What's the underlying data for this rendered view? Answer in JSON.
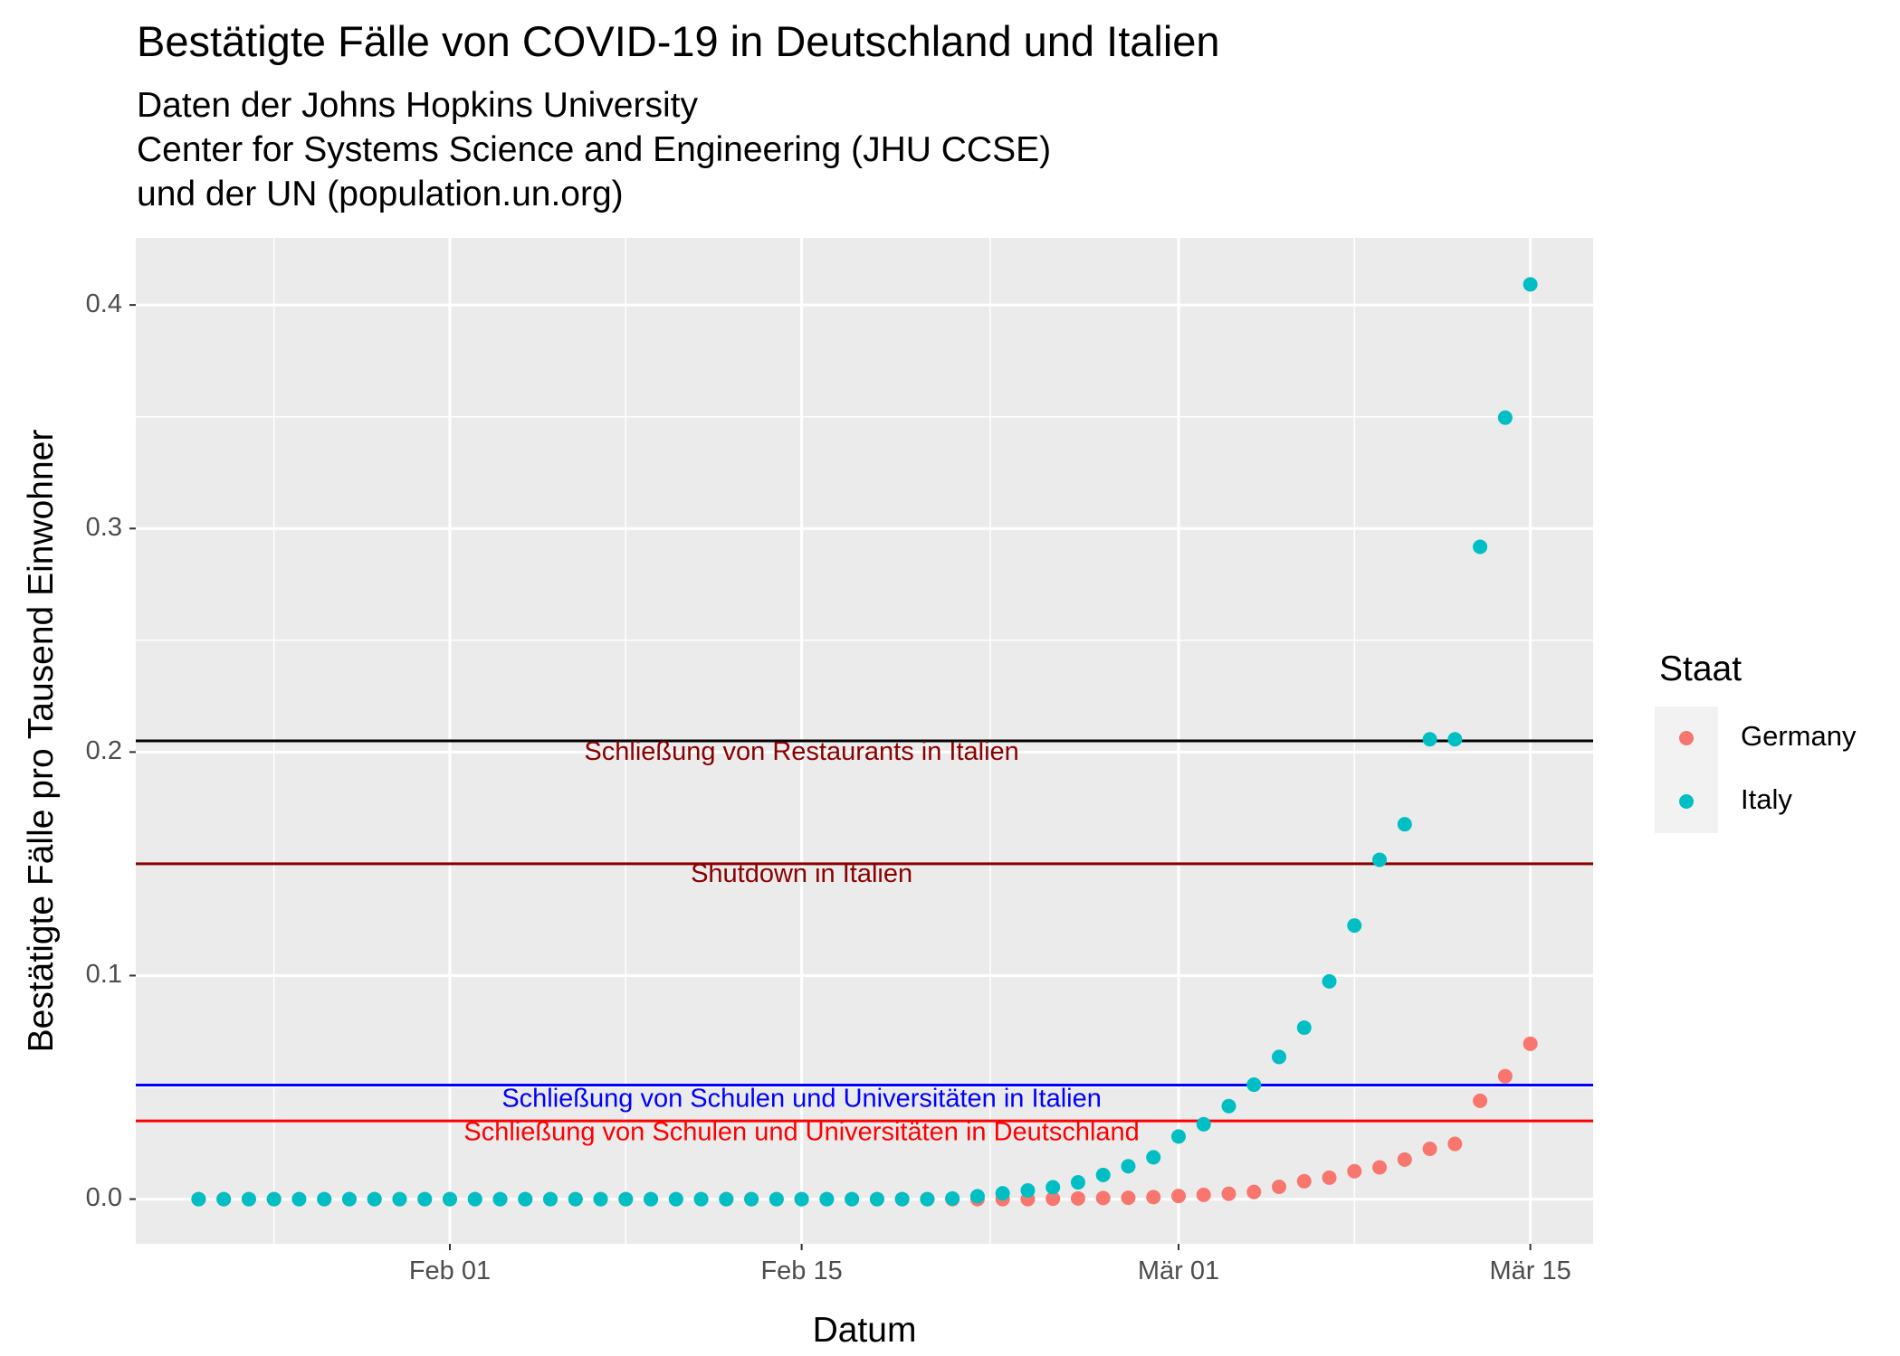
{
  "chart_data": {
    "type": "scatter",
    "title": "Bestätigte Fälle von COVID-19 in Deutschland und Italien",
    "subtitle_lines": [
      "Daten der Johns Hopkins University",
      "Center for Systems Science and Engineering (JHU CCSE)",
      "und der UN (population.un.org)"
    ],
    "xlabel": "Datum",
    "ylabel": "Bestätigte Fälle pro Tausend Einwohner",
    "x_dates": [
      "2020-01-22",
      "2020-01-23",
      "2020-01-24",
      "2020-01-25",
      "2020-01-26",
      "2020-01-27",
      "2020-01-28",
      "2020-01-29",
      "2020-01-30",
      "2020-01-31",
      "2020-02-01",
      "2020-02-02",
      "2020-02-03",
      "2020-02-04",
      "2020-02-05",
      "2020-02-06",
      "2020-02-07",
      "2020-02-08",
      "2020-02-09",
      "2020-02-10",
      "2020-02-11",
      "2020-02-12",
      "2020-02-13",
      "2020-02-14",
      "2020-02-15",
      "2020-02-16",
      "2020-02-17",
      "2020-02-18",
      "2020-02-19",
      "2020-02-20",
      "2020-02-21",
      "2020-02-22",
      "2020-02-23",
      "2020-02-24",
      "2020-02-25",
      "2020-02-26",
      "2020-02-27",
      "2020-02-28",
      "2020-02-29",
      "2020-03-01",
      "2020-03-02",
      "2020-03-03",
      "2020-03-04",
      "2020-03-05",
      "2020-03-06",
      "2020-03-07",
      "2020-03-08",
      "2020-03-09",
      "2020-03-10",
      "2020-03-11",
      "2020-03-12",
      "2020-03-13",
      "2020-03-14",
      "2020-03-15"
    ],
    "series": [
      {
        "name": "Germany",
        "color": "#F8766D",
        "values": [
          0,
          0,
          0,
          0,
          0,
          0,
          0,
          0,
          0,
          0,
          0,
          0,
          0,
          0,
          0,
          0,
          0,
          0,
          0,
          0,
          0,
          0,
          0,
          0,
          0,
          0,
          0,
          0,
          0,
          0,
          0,
          0,
          0,
          0,
          0.0002,
          0.0003,
          0.0005,
          0.0006,
          0.0009,
          0.0014,
          0.0019,
          0.0024,
          0.0032,
          0.0055,
          0.008,
          0.0096,
          0.0125,
          0.0142,
          0.0177,
          0.0225,
          0.0247,
          0.044,
          0.055,
          0.0695
        ]
      },
      {
        "name": "Italy",
        "color": "#00BFC4",
        "values": [
          0,
          0,
          0,
          0,
          0,
          0,
          0,
          0,
          0,
          0,
          0,
          0,
          0,
          0,
          0,
          0,
          0,
          0,
          0,
          0,
          0,
          0,
          0,
          0,
          0,
          0,
          0,
          0,
          0,
          0,
          0.0003,
          0.0013,
          0.0026,
          0.0039,
          0.0053,
          0.0075,
          0.0108,
          0.0147,
          0.0187,
          0.028,
          0.0335,
          0.0416,
          0.0512,
          0.0636,
          0.0767,
          0.0974,
          0.1224,
          0.1518,
          0.1677,
          0.2057,
          0.2057,
          0.2918,
          0.3496,
          0.4092
        ]
      }
    ],
    "reference_lines": [
      {
        "y": 0.205,
        "color": "#000000",
        "label": "Schließung von Restaurants in Italien",
        "label_color": "#8B0000",
        "label_y": 0.1995
      },
      {
        "y": 0.15,
        "color": "#8B0000",
        "label": "Shutdown in Italien",
        "label_color": "#8B0000",
        "label_y": 0.145
      },
      {
        "y": 0.051,
        "color": "#0000FF",
        "label": "Schließung von Schulen und Universitäten in Italien",
        "label_color": "#0000FF",
        "label_y": 0.0445
      },
      {
        "y": 0.035,
        "color": "#FF0000",
        "label": "Schließung von Schulen und Universitäten in Deutschland",
        "label_color": "#FF0000",
        "label_y": 0.0295
      }
    ],
    "x_ticks": [
      {
        "date": "2020-02-01",
        "label": "Feb 01"
      },
      {
        "date": "2020-02-15",
        "label": "Feb 15"
      },
      {
        "date": "2020-03-01",
        "label": "Mär 01"
      },
      {
        "date": "2020-03-15",
        "label": "Mär 15"
      }
    ],
    "y_ticks": [
      0.0,
      0.1,
      0.2,
      0.3,
      0.4
    ],
    "y_tick_labels": [
      "0.0",
      "0.1",
      "0.2",
      "0.3",
      "0.4"
    ],
    "xlim": [
      "2020-01-19.5",
      "2020-03-17.5"
    ],
    "ylim": [
      -0.02,
      0.43
    ],
    "grid": true,
    "legend": {
      "title": "Staat",
      "position": "right",
      "items": [
        "Germany",
        "Italy"
      ]
    },
    "colors": {
      "panel": "#EBEBEB",
      "grid": "#FFFFFF",
      "legend_key": "#F2F2F2"
    }
  }
}
